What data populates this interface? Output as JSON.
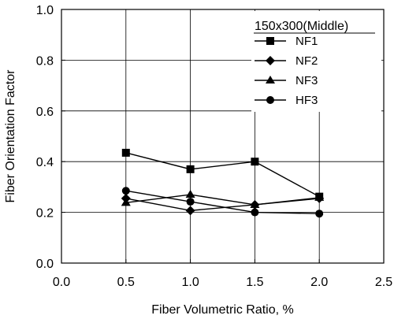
{
  "chart_data": {
    "type": "line",
    "xlabel": "Fiber Volumetric Ratio,  %",
    "ylabel": "Fiber Orientation Factor",
    "xlim": [
      0.0,
      2.5
    ],
    "ylim": [
      0.0,
      1.0
    ],
    "xticks": [
      "0.0",
      "0.5",
      "1.0",
      "1.5",
      "2.0",
      "2.5"
    ],
    "yticks": [
      "0.0",
      "0.2",
      "0.4",
      "0.6",
      "0.8",
      "1.0"
    ],
    "grid": true,
    "legend": {
      "title": "150x300(Middle)",
      "placement": "top-right"
    },
    "x": [
      0.5,
      1.0,
      1.5,
      2.0
    ],
    "series": [
      {
        "name": "NF1",
        "marker": "square",
        "color": "#000000",
        "values": [
          0.435,
          0.37,
          0.4,
          0.262
        ]
      },
      {
        "name": "NF2",
        "marker": "diamond",
        "color": "#000000",
        "values": [
          0.255,
          0.207,
          0.23,
          0.255
        ]
      },
      {
        "name": "NF3",
        "marker": "triangle",
        "color": "#000000",
        "values": [
          0.238,
          0.27,
          0.23,
          0.258
        ]
      },
      {
        "name": "HF3",
        "marker": "circle",
        "color": "#000000",
        "values": [
          0.285,
          0.242,
          0.2,
          0.195
        ]
      }
    ]
  }
}
